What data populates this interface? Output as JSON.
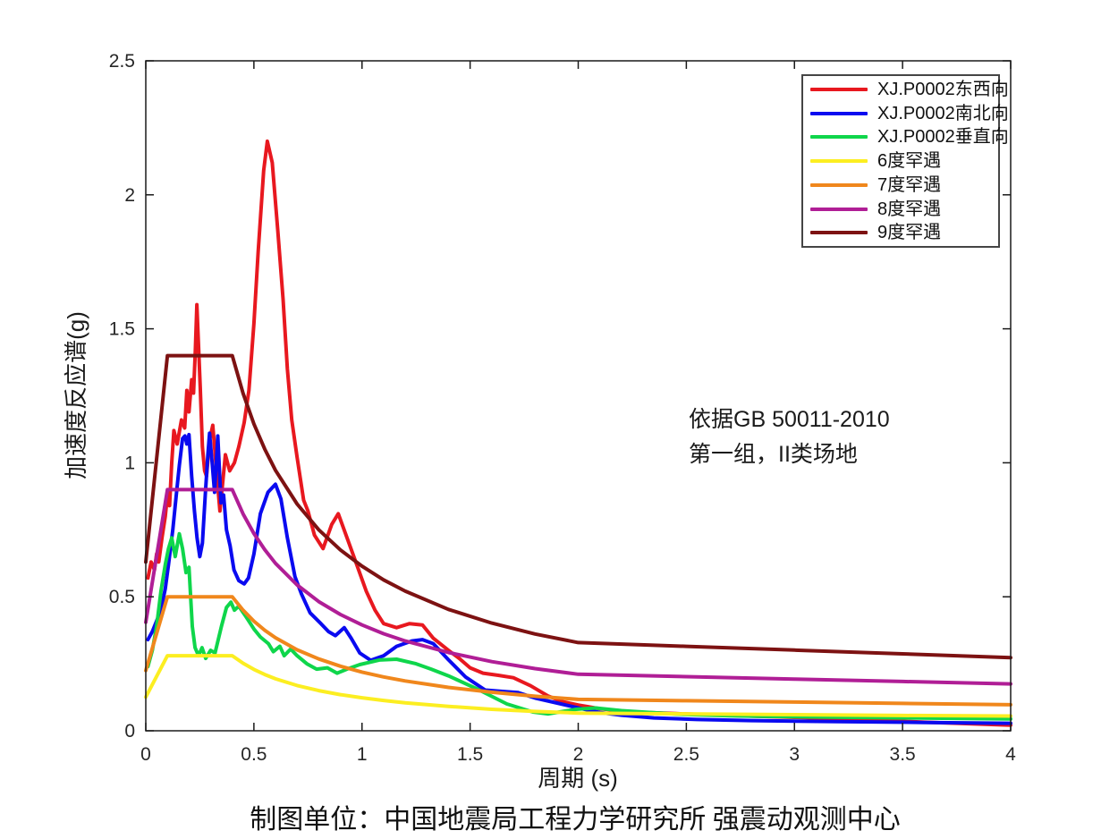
{
  "figure": {
    "background": "#ffffff",
    "axis_color": "#1a1a1a",
    "tick_text_color": "#262626"
  },
  "chart_data": {
    "type": "line",
    "title": "",
    "xlabel": "周期 (s)",
    "ylabel": "加速度反应谱(g)",
    "xlim": [
      0,
      4
    ],
    "ylim": [
      0,
      2.5
    ],
    "grid": false,
    "xticks": [
      0,
      0.5,
      1,
      1.5,
      2,
      2.5,
      3,
      3.5,
      4
    ],
    "xtick_labels": [
      "0",
      "0.5",
      "1",
      "1.5",
      "2",
      "2.5",
      "3",
      "3.5",
      "4"
    ],
    "yticks": [
      0,
      0.5,
      1,
      1.5,
      2,
      2.5
    ],
    "ytick_labels": [
      "0",
      "0.5",
      "1",
      "1.5",
      "2",
      "2.5"
    ],
    "legend_position": "top-right",
    "annotation": {
      "line1": "依据GB 50011-2010",
      "line2": "第一组，II类场地"
    },
    "caption": "制图单位：中国地震局工程力学研究所 强震动观测中心",
    "series": [
      {
        "name": "XJ.P0002东西向",
        "color": "#e8181f",
        "width": 4,
        "points": [
          [
            0.01,
            0.57
          ],
          [
            0.025,
            0.63
          ],
          [
            0.04,
            0.6
          ],
          [
            0.05,
            0.66
          ],
          [
            0.06,
            0.63
          ],
          [
            0.075,
            0.72
          ],
          [
            0.09,
            0.8
          ],
          [
            0.1,
            0.88
          ],
          [
            0.11,
            0.84
          ],
          [
            0.12,
            1.0
          ],
          [
            0.13,
            1.12
          ],
          [
            0.145,
            1.07
          ],
          [
            0.165,
            1.16
          ],
          [
            0.18,
            1.13
          ],
          [
            0.19,
            1.27
          ],
          [
            0.2,
            1.19
          ],
          [
            0.212,
            1.31
          ],
          [
            0.221,
            1.26
          ],
          [
            0.229,
            1.42
          ],
          [
            0.236,
            1.59
          ],
          [
            0.252,
            1.28
          ],
          [
            0.262,
            1.06
          ],
          [
            0.272,
            0.97
          ],
          [
            0.281,
            0.95
          ],
          [
            0.296,
            1.09
          ],
          [
            0.31,
            1.14
          ],
          [
            0.33,
            0.94
          ],
          [
            0.343,
            0.82
          ],
          [
            0.368,
            1.03
          ],
          [
            0.388,
            0.97
          ],
          [
            0.41,
            1.0
          ],
          [
            0.43,
            1.06
          ],
          [
            0.455,
            1.15
          ],
          [
            0.477,
            1.27
          ],
          [
            0.5,
            1.52
          ],
          [
            0.52,
            1.79
          ],
          [
            0.545,
            2.09
          ],
          [
            0.562,
            2.2
          ],
          [
            0.585,
            2.12
          ],
          [
            0.61,
            1.87
          ],
          [
            0.635,
            1.61
          ],
          [
            0.655,
            1.35
          ],
          [
            0.675,
            1.16
          ],
          [
            0.7,
            1.02
          ],
          [
            0.73,
            0.86
          ],
          [
            0.75,
            0.82
          ],
          [
            0.78,
            0.73
          ],
          [
            0.82,
            0.68
          ],
          [
            0.86,
            0.77
          ],
          [
            0.89,
            0.81
          ],
          [
            0.94,
            0.7
          ],
          [
            0.98,
            0.61
          ],
          [
            1.02,
            0.52
          ],
          [
            1.06,
            0.45
          ],
          [
            1.1,
            0.4
          ],
          [
            1.16,
            0.385
          ],
          [
            1.22,
            0.4
          ],
          [
            1.28,
            0.395
          ],
          [
            1.33,
            0.345
          ],
          [
            1.4,
            0.3
          ],
          [
            1.45,
            0.27
          ],
          [
            1.5,
            0.235
          ],
          [
            1.56,
            0.215
          ],
          [
            1.63,
            0.207
          ],
          [
            1.7,
            0.198
          ],
          [
            1.78,
            0.168
          ],
          [
            1.86,
            0.13
          ],
          [
            1.93,
            0.108
          ],
          [
            2.0,
            0.096
          ],
          [
            2.1,
            0.082
          ],
          [
            2.25,
            0.07
          ],
          [
            2.45,
            0.064
          ],
          [
            2.7,
            0.057
          ],
          [
            3.0,
            0.05
          ],
          [
            3.3,
            0.042
          ],
          [
            3.6,
            0.032
          ],
          [
            4.0,
            0.021
          ]
        ]
      },
      {
        "name": "XJ.P0002南北向",
        "color": "#0a0af0",
        "width": 4,
        "points": [
          [
            0.01,
            0.34
          ],
          [
            0.03,
            0.37
          ],
          [
            0.05,
            0.41
          ],
          [
            0.07,
            0.45
          ],
          [
            0.09,
            0.53
          ],
          [
            0.105,
            0.62
          ],
          [
            0.125,
            0.75
          ],
          [
            0.14,
            0.87
          ],
          [
            0.155,
            0.99
          ],
          [
            0.17,
            1.09
          ],
          [
            0.181,
            1.1
          ],
          [
            0.19,
            1.07
          ],
          [
            0.2,
            1.105
          ],
          [
            0.212,
            0.95
          ],
          [
            0.225,
            0.82
          ],
          [
            0.237,
            0.72
          ],
          [
            0.25,
            0.65
          ],
          [
            0.262,
            0.7
          ],
          [
            0.275,
            0.88
          ],
          [
            0.287,
            1.03
          ],
          [
            0.295,
            1.11
          ],
          [
            0.307,
            1.0
          ],
          [
            0.318,
            0.89
          ],
          [
            0.326,
            1.0
          ],
          [
            0.333,
            1.1
          ],
          [
            0.348,
            0.85
          ],
          [
            0.36,
            0.88
          ],
          [
            0.373,
            0.75
          ],
          [
            0.39,
            0.69
          ],
          [
            0.408,
            0.6
          ],
          [
            0.43,
            0.56
          ],
          [
            0.455,
            0.548
          ],
          [
            0.475,
            0.57
          ],
          [
            0.5,
            0.66
          ],
          [
            0.53,
            0.81
          ],
          [
            0.565,
            0.89
          ],
          [
            0.6,
            0.92
          ],
          [
            0.625,
            0.865
          ],
          [
            0.655,
            0.72
          ],
          [
            0.69,
            0.575
          ],
          [
            0.72,
            0.51
          ],
          [
            0.76,
            0.44
          ],
          [
            0.81,
            0.4
          ],
          [
            0.845,
            0.37
          ],
          [
            0.877,
            0.355
          ],
          [
            0.918,
            0.385
          ],
          [
            0.95,
            0.345
          ],
          [
            0.99,
            0.29
          ],
          [
            1.04,
            0.263
          ],
          [
            1.1,
            0.28
          ],
          [
            1.16,
            0.315
          ],
          [
            1.23,
            0.335
          ],
          [
            1.28,
            0.34
          ],
          [
            1.33,
            0.325
          ],
          [
            1.4,
            0.265
          ],
          [
            1.48,
            0.2
          ],
          [
            1.57,
            0.152
          ],
          [
            1.65,
            0.147
          ],
          [
            1.72,
            0.143
          ],
          [
            1.8,
            0.122
          ],
          [
            1.92,
            0.1
          ],
          [
            2.0,
            0.085
          ],
          [
            2.1,
            0.068
          ],
          [
            2.2,
            0.058
          ],
          [
            2.35,
            0.048
          ],
          [
            2.55,
            0.042
          ],
          [
            2.8,
            0.038
          ],
          [
            3.2,
            0.034
          ],
          [
            3.6,
            0.031
          ],
          [
            4.0,
            0.028
          ]
        ]
      },
      {
        "name": "XJ.P0002垂直向",
        "color": "#0fd64b",
        "width": 4,
        "points": [
          [
            0.01,
            0.24
          ],
          [
            0.03,
            0.3
          ],
          [
            0.05,
            0.39
          ],
          [
            0.07,
            0.52
          ],
          [
            0.09,
            0.62
          ],
          [
            0.105,
            0.68
          ],
          [
            0.12,
            0.72
          ],
          [
            0.136,
            0.65
          ],
          [
            0.155,
            0.735
          ],
          [
            0.17,
            0.68
          ],
          [
            0.186,
            0.59
          ],
          [
            0.2,
            0.61
          ],
          [
            0.215,
            0.39
          ],
          [
            0.228,
            0.31
          ],
          [
            0.244,
            0.28
          ],
          [
            0.26,
            0.31
          ],
          [
            0.277,
            0.27
          ],
          [
            0.3,
            0.3
          ],
          [
            0.32,
            0.29
          ],
          [
            0.35,
            0.39
          ],
          [
            0.373,
            0.46
          ],
          [
            0.394,
            0.48
          ],
          [
            0.41,
            0.45
          ],
          [
            0.43,
            0.465
          ],
          [
            0.46,
            0.43
          ],
          [
            0.5,
            0.38
          ],
          [
            0.53,
            0.35
          ],
          [
            0.567,
            0.325
          ],
          [
            0.59,
            0.295
          ],
          [
            0.62,
            0.315
          ],
          [
            0.64,
            0.28
          ],
          [
            0.67,
            0.305
          ],
          [
            0.7,
            0.28
          ],
          [
            0.745,
            0.25
          ],
          [
            0.79,
            0.23
          ],
          [
            0.84,
            0.235
          ],
          [
            0.885,
            0.215
          ],
          [
            0.93,
            0.23
          ],
          [
            0.99,
            0.247
          ],
          [
            1.08,
            0.264
          ],
          [
            1.16,
            0.267
          ],
          [
            1.25,
            0.25
          ],
          [
            1.32,
            0.23
          ],
          [
            1.4,
            0.205
          ],
          [
            1.53,
            0.157
          ],
          [
            1.67,
            0.1
          ],
          [
            1.79,
            0.07
          ],
          [
            1.86,
            0.063
          ],
          [
            1.99,
            0.08
          ],
          [
            2.08,
            0.085
          ],
          [
            2.2,
            0.075
          ],
          [
            2.45,
            0.062
          ],
          [
            2.7,
            0.056
          ],
          [
            3.0,
            0.052
          ],
          [
            3.5,
            0.048
          ],
          [
            4.0,
            0.044
          ]
        ]
      },
      {
        "name": "6度罕遇",
        "color": "#fcee21",
        "width": 4,
        "points": [
          [
            0,
            0.126
          ],
          [
            0.1,
            0.28
          ],
          [
            0.4,
            0.28
          ],
          [
            0.45,
            0.252
          ],
          [
            0.5,
            0.229
          ],
          [
            0.55,
            0.21
          ],
          [
            0.6,
            0.194
          ],
          [
            0.7,
            0.169
          ],
          [
            0.8,
            0.15
          ],
          [
            0.9,
            0.135
          ],
          [
            1.0,
            0.123
          ],
          [
            1.1,
            0.113
          ],
          [
            1.2,
            0.104
          ],
          [
            1.4,
            0.091
          ],
          [
            1.6,
            0.08
          ],
          [
            1.8,
            0.072
          ],
          [
            2.0,
            0.066
          ],
          [
            2.5,
            0.063
          ],
          [
            3.0,
            0.06
          ],
          [
            3.5,
            0.057
          ],
          [
            4.0,
            0.055
          ]
        ]
      },
      {
        "name": "7度罕遇",
        "color": "#f0871c",
        "width": 4,
        "points": [
          [
            0,
            0.225
          ],
          [
            0.1,
            0.5
          ],
          [
            0.4,
            0.5
          ],
          [
            0.45,
            0.45
          ],
          [
            0.5,
            0.409
          ],
          [
            0.55,
            0.375
          ],
          [
            0.6,
            0.347
          ],
          [
            0.7,
            0.302
          ],
          [
            0.8,
            0.268
          ],
          [
            0.9,
            0.241
          ],
          [
            1.0,
            0.219
          ],
          [
            1.1,
            0.201
          ],
          [
            1.2,
            0.186
          ],
          [
            1.4,
            0.162
          ],
          [
            1.6,
            0.144
          ],
          [
            1.8,
            0.129
          ],
          [
            2.0,
            0.117
          ],
          [
            2.5,
            0.112
          ],
          [
            3.0,
            0.107
          ],
          [
            3.5,
            0.102
          ],
          [
            4.0,
            0.097
          ]
        ]
      },
      {
        "name": "8度罕遇",
        "color": "#b01e96",
        "width": 4,
        "points": [
          [
            0,
            0.405
          ],
          [
            0.1,
            0.9
          ],
          [
            0.4,
            0.9
          ],
          [
            0.45,
            0.809
          ],
          [
            0.5,
            0.736
          ],
          [
            0.55,
            0.676
          ],
          [
            0.6,
            0.625
          ],
          [
            0.7,
            0.544
          ],
          [
            0.8,
            0.482
          ],
          [
            0.9,
            0.434
          ],
          [
            1.0,
            0.395
          ],
          [
            1.1,
            0.362
          ],
          [
            1.2,
            0.335
          ],
          [
            1.4,
            0.292
          ],
          [
            1.6,
            0.258
          ],
          [
            1.8,
            0.232
          ],
          [
            2.0,
            0.211
          ],
          [
            2.5,
            0.202
          ],
          [
            3.0,
            0.193
          ],
          [
            3.5,
            0.184
          ],
          [
            4.0,
            0.175
          ]
        ]
      },
      {
        "name": "9度罕遇",
        "color": "#7d1212",
        "width": 4,
        "points": [
          [
            0,
            0.63
          ],
          [
            0.1,
            1.4
          ],
          [
            0.4,
            1.4
          ],
          [
            0.45,
            1.259
          ],
          [
            0.5,
            1.145
          ],
          [
            0.55,
            1.051
          ],
          [
            0.6,
            0.972
          ],
          [
            0.7,
            0.846
          ],
          [
            0.8,
            0.75
          ],
          [
            0.9,
            0.675
          ],
          [
            1.0,
            0.614
          ],
          [
            1.1,
            0.563
          ],
          [
            1.2,
            0.521
          ],
          [
            1.4,
            0.453
          ],
          [
            1.6,
            0.402
          ],
          [
            1.8,
            0.361
          ],
          [
            2.0,
            0.329
          ],
          [
            2.5,
            0.315
          ],
          [
            3.0,
            0.301
          ],
          [
            3.5,
            0.287
          ],
          [
            4.0,
            0.273
          ]
        ]
      }
    ]
  }
}
